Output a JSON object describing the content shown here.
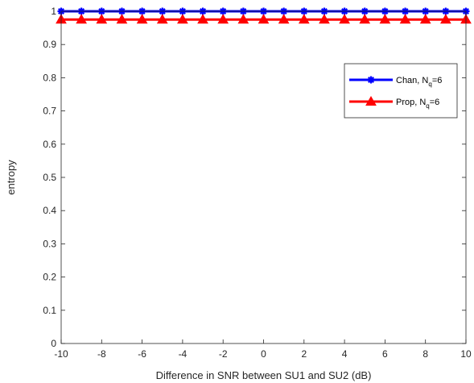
{
  "chart_data": {
    "type": "line",
    "title": "",
    "xlabel": "Difference in SNR between SU1 and SU2 (dB)",
    "ylabel": "entropy",
    "xlim": [
      -10,
      10
    ],
    "ylim": [
      0,
      1
    ],
    "xticks": [
      -10,
      -8,
      -6,
      -4,
      -2,
      0,
      2,
      4,
      6,
      8,
      10
    ],
    "yticks": [
      0,
      0.1,
      0.2,
      0.3,
      0.4,
      0.5,
      0.6,
      0.7,
      0.8,
      0.9,
      1
    ],
    "x": [
      -10,
      -9,
      -8,
      -7,
      -6,
      -5,
      -4,
      -3,
      -2,
      -1,
      0,
      1,
      2,
      3,
      4,
      5,
      6,
      7,
      8,
      9,
      10
    ],
    "series": [
      {
        "name": "Chan, N",
        "name_sub": "q",
        "name_suffix": "=6",
        "color": "#0000ff",
        "marker": "asterisk",
        "values": [
          1,
          1,
          1,
          1,
          1,
          1,
          1,
          1,
          1,
          1,
          1,
          1,
          1,
          1,
          1,
          1,
          1,
          1,
          1,
          1,
          1
        ]
      },
      {
        "name": "Prop, N",
        "name_sub": "q",
        "name_suffix": "=6",
        "color": "#ff0000",
        "marker": "triangle",
        "values": [
          0.975,
          0.975,
          0.975,
          0.975,
          0.975,
          0.975,
          0.975,
          0.975,
          0.975,
          0.975,
          0.975,
          0.975,
          0.975,
          0.975,
          0.975,
          0.975,
          0.975,
          0.975,
          0.975,
          0.975,
          0.975
        ]
      }
    ],
    "legend_position": "upper-right",
    "grid": false,
    "box": true
  }
}
